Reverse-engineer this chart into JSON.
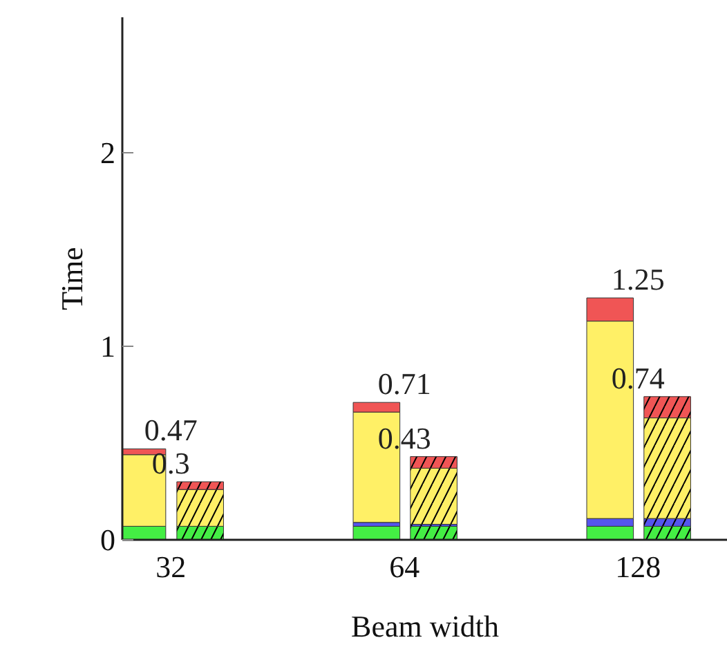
{
  "chart_data": {
    "type": "bar",
    "xlabel": "Beam width",
    "ylabel": "Time",
    "log": "x",
    "xlim": [
      27.7,
      167
    ],
    "xticks": [
      32,
      64,
      128
    ],
    "series": [
      {
        "color": "#44ee44",
        "x": [
          29.4,
          58.9,
          117.8
        ],
        "base": [
          0,
          0,
          0
        ],
        "values": [
          0.07,
          0.07,
          0.07
        ]
      },
      {
        "color": "#5555ee",
        "x": [
          null,
          58.9,
          117.8
        ],
        "base": [
          null,
          0.07,
          0.07
        ],
        "values": [
          null,
          0.02,
          0.04
        ]
      },
      {
        "color": "#fff066",
        "x": [
          29.4,
          58.9,
          117.8
        ],
        "base": [
          0.07,
          0.09,
          0.11
        ],
        "values": [
          0.37,
          0.57,
          1.02
        ]
      },
      {
        "color": "#f05555",
        "x": [
          29.4,
          58.9,
          117.8
        ],
        "base": [
          0.44,
          0.66,
          1.13
        ],
        "values": [
          0.03,
          0.05,
          0.12
        ]
      },
      {
        "color": "#44ee44",
        "x": [
          34.9,
          69.8,
          139.6
        ],
        "base": [
          0,
          0,
          0
        ],
        "values": [
          0.07,
          0.07,
          0.07
        ]
      },
      {
        "color": "#5555ee",
        "x": [
          null,
          69.8,
          139.6
        ],
        "base": [
          null,
          0.07,
          0.07
        ],
        "values": [
          null,
          0.01,
          0.04
        ]
      },
      {
        "color": "#fff066",
        "x": [
          34.9,
          69.8,
          139.6
        ],
        "base": [
          0.07,
          0.08,
          0.11
        ],
        "values": [
          0.19,
          0.29,
          0.52
        ]
      },
      {
        "color": "#f05555",
        "x": [
          34.9,
          69.8,
          139.6
        ],
        "base": [
          0.26,
          0.37,
          0.63
        ],
        "values": [
          0.04,
          0.06,
          0.11
        ]
      }
    ],
    "annotations": [
      {
        "text": "0.47",
        "x": 32,
        "y": 0.47
      },
      {
        "text": "0.3",
        "x": 32,
        "y": 0.3
      },
      {
        "text": "0.71",
        "x": 64,
        "y": 0.71
      },
      {
        "text": "0.43",
        "x": 64,
        "y": 0.43
      },
      {
        "text": "1.25",
        "x": 128,
        "y": 1.25
      },
      {
        "text": "0.74",
        "x": 128,
        "y": 0.74
      }
    ],
    "ylim": [
      0,
      2.7
    ],
    "yticks": [
      0,
      1,
      2
    ],
    "grid": false
  }
}
